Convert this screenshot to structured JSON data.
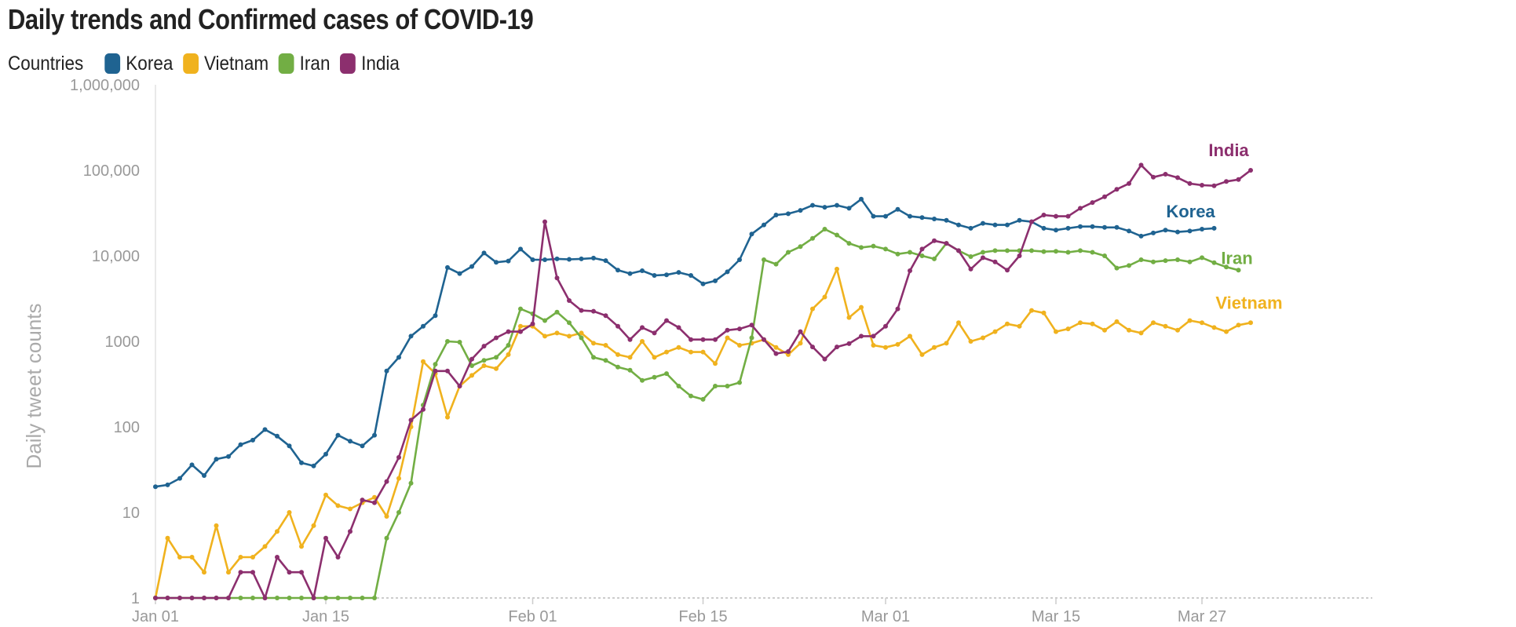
{
  "title": "Daily trends and Confirmed cases of COVID-19",
  "legend": {
    "title": "Countries",
    "items": [
      {
        "label": "Korea",
        "color": "#1f6391"
      },
      {
        "label": "Vietnam",
        "color": "#f0b21e"
      },
      {
        "label": "Iran",
        "color": "#72ae44"
      },
      {
        "label": "India",
        "color": "#8c2f6e"
      }
    ]
  },
  "chart_data": {
    "type": "line",
    "title": "Daily trends and Confirmed cases of COVID-19",
    "xlabel": "",
    "ylabel": "Daily tweet counts",
    "yscale": "log",
    "ylim": [
      1,
      1000000
    ],
    "xlim": [
      "2020-01-01",
      "2020-04-10"
    ],
    "x_start": "2020-01-01",
    "x_ticks": [
      {
        "label": "Jan 01",
        "day": 0
      },
      {
        "label": "Jan 15",
        "day": 14
      },
      {
        "label": "Feb 01",
        "day": 31
      },
      {
        "label": "Feb 15",
        "day": 45
      },
      {
        "label": "Mar 01",
        "day": 60
      },
      {
        "label": "Mar 15",
        "day": 74
      },
      {
        "label": "Mar 27",
        "day": 86
      }
    ],
    "y_ticks": [
      {
        "label": "1",
        "value": 1
      },
      {
        "label": "10",
        "value": 10
      },
      {
        "label": "100",
        "value": 100
      },
      {
        "label": "1000",
        "value": 1000
      },
      {
        "label": "10,000",
        "value": 10000
      },
      {
        "label": "100,000",
        "value": 100000
      },
      {
        "label": "1,000,000",
        "value": 1000000
      }
    ],
    "grid": false,
    "legend_position": "top-left",
    "series": [
      {
        "name": "Korea",
        "color": "#1f6391",
        "end_label": "Korea",
        "values": [
          20,
          21,
          25,
          36,
          27,
          42,
          45,
          62,
          70,
          93,
          78,
          60,
          38,
          35,
          48,
          80,
          68,
          60,
          80,
          450,
          650,
          1150,
          1500,
          2000,
          7300,
          6200,
          7500,
          10800,
          8400,
          8700,
          12000,
          9000,
          9000,
          9200,
          9100,
          9200,
          9400,
          8800,
          6800,
          6200,
          6700,
          5900,
          6000,
          6400,
          5900,
          4700,
          5100,
          6500,
          9000,
          18000,
          23000,
          30000,
          31000,
          34000,
          39000,
          37000,
          39000,
          36000,
          46000,
          29000,
          29000,
          35000,
          29000,
          28000,
          27000,
          26000,
          23000,
          21000,
          24000,
          23000,
          23000,
          26000,
          25000,
          21000,
          20000,
          21000,
          22000,
          22000,
          21500,
          21500,
          19500,
          17000,
          18500,
          20000,
          19000,
          19500,
          20500,
          21000
        ]
      },
      {
        "name": "Vietnam",
        "color": "#f0b21e",
        "end_label": "Vietnam",
        "values": [
          1,
          5,
          3,
          3,
          2,
          7,
          2,
          3,
          3,
          4,
          6,
          10,
          4,
          7,
          16,
          12,
          11,
          13,
          15,
          9,
          25,
          100,
          580,
          420,
          130,
          300,
          400,
          520,
          480,
          700,
          1500,
          1500,
          1150,
          1250,
          1150,
          1250,
          950,
          900,
          700,
          650,
          1000,
          650,
          750,
          850,
          750,
          750,
          550,
          1100,
          900,
          950,
          1050,
          850,
          700,
          950,
          2400,
          3300,
          7000,
          1900,
          2500,
          900,
          850,
          920,
          1150,
          700,
          850,
          950,
          1650,
          1000,
          1100,
          1300,
          1600,
          1500,
          2300,
          2150,
          1300,
          1400,
          1650,
          1600,
          1350,
          1700,
          1350,
          1250,
          1650,
          1500,
          1350,
          1750,
          1650,
          1450,
          1300,
          1550,
          1650
        ]
      },
      {
        "name": "Iran",
        "color": "#72ae44",
        "end_label": "Iran",
        "values": [
          1,
          1,
          1,
          1,
          1,
          1,
          1,
          1,
          1,
          1,
          1,
          1,
          1,
          1,
          1,
          1,
          1,
          1,
          1,
          5,
          10,
          22,
          180,
          540,
          1000,
          980,
          520,
          600,
          650,
          900,
          2400,
          2100,
          1750,
          2200,
          1650,
          1100,
          650,
          600,
          500,
          460,
          350,
          380,
          420,
          300,
          230,
          210,
          300,
          300,
          330,
          1100,
          9000,
          8000,
          11000,
          12800,
          16000,
          20500,
          17500,
          14000,
          12500,
          13000,
          12000,
          10500,
          11000,
          10000,
          9200,
          14000,
          11500,
          9800,
          11000,
          11500,
          11500,
          11500,
          11500,
          11200,
          11300,
          11000,
          11500,
          11000,
          10000,
          7200,
          7700,
          9000,
          8500,
          8800,
          9000,
          8500,
          9500,
          8300,
          7400,
          6800
        ]
      },
      {
        "name": "India",
        "color": "#8c2f6e",
        "end_label": "India",
        "values": [
          1,
          1,
          1,
          1,
          1,
          1,
          1,
          2,
          2,
          1,
          3,
          2,
          2,
          1,
          5,
          3,
          6,
          14,
          13,
          23,
          44,
          120,
          160,
          450,
          450,
          300,
          620,
          880,
          1100,
          1300,
          1300,
          1600,
          25000,
          5500,
          3000,
          2300,
          2250,
          2000,
          1500,
          1050,
          1450,
          1250,
          1750,
          1450,
          1050,
          1050,
          1050,
          1350,
          1400,
          1550,
          1050,
          720,
          760,
          1300,
          860,
          620,
          860,
          940,
          1150,
          1150,
          1500,
          2400,
          6700,
          12000,
          15000,
          14000,
          11500,
          7000,
          9500,
          8500,
          6800,
          10000,
          25000,
          30000,
          29000,
          29000,
          36000,
          42000,
          49000,
          60000,
          70000,
          115000,
          83000,
          90000,
          82000,
          70000,
          67000,
          66000,
          74000,
          78000,
          100000
        ]
      }
    ]
  }
}
